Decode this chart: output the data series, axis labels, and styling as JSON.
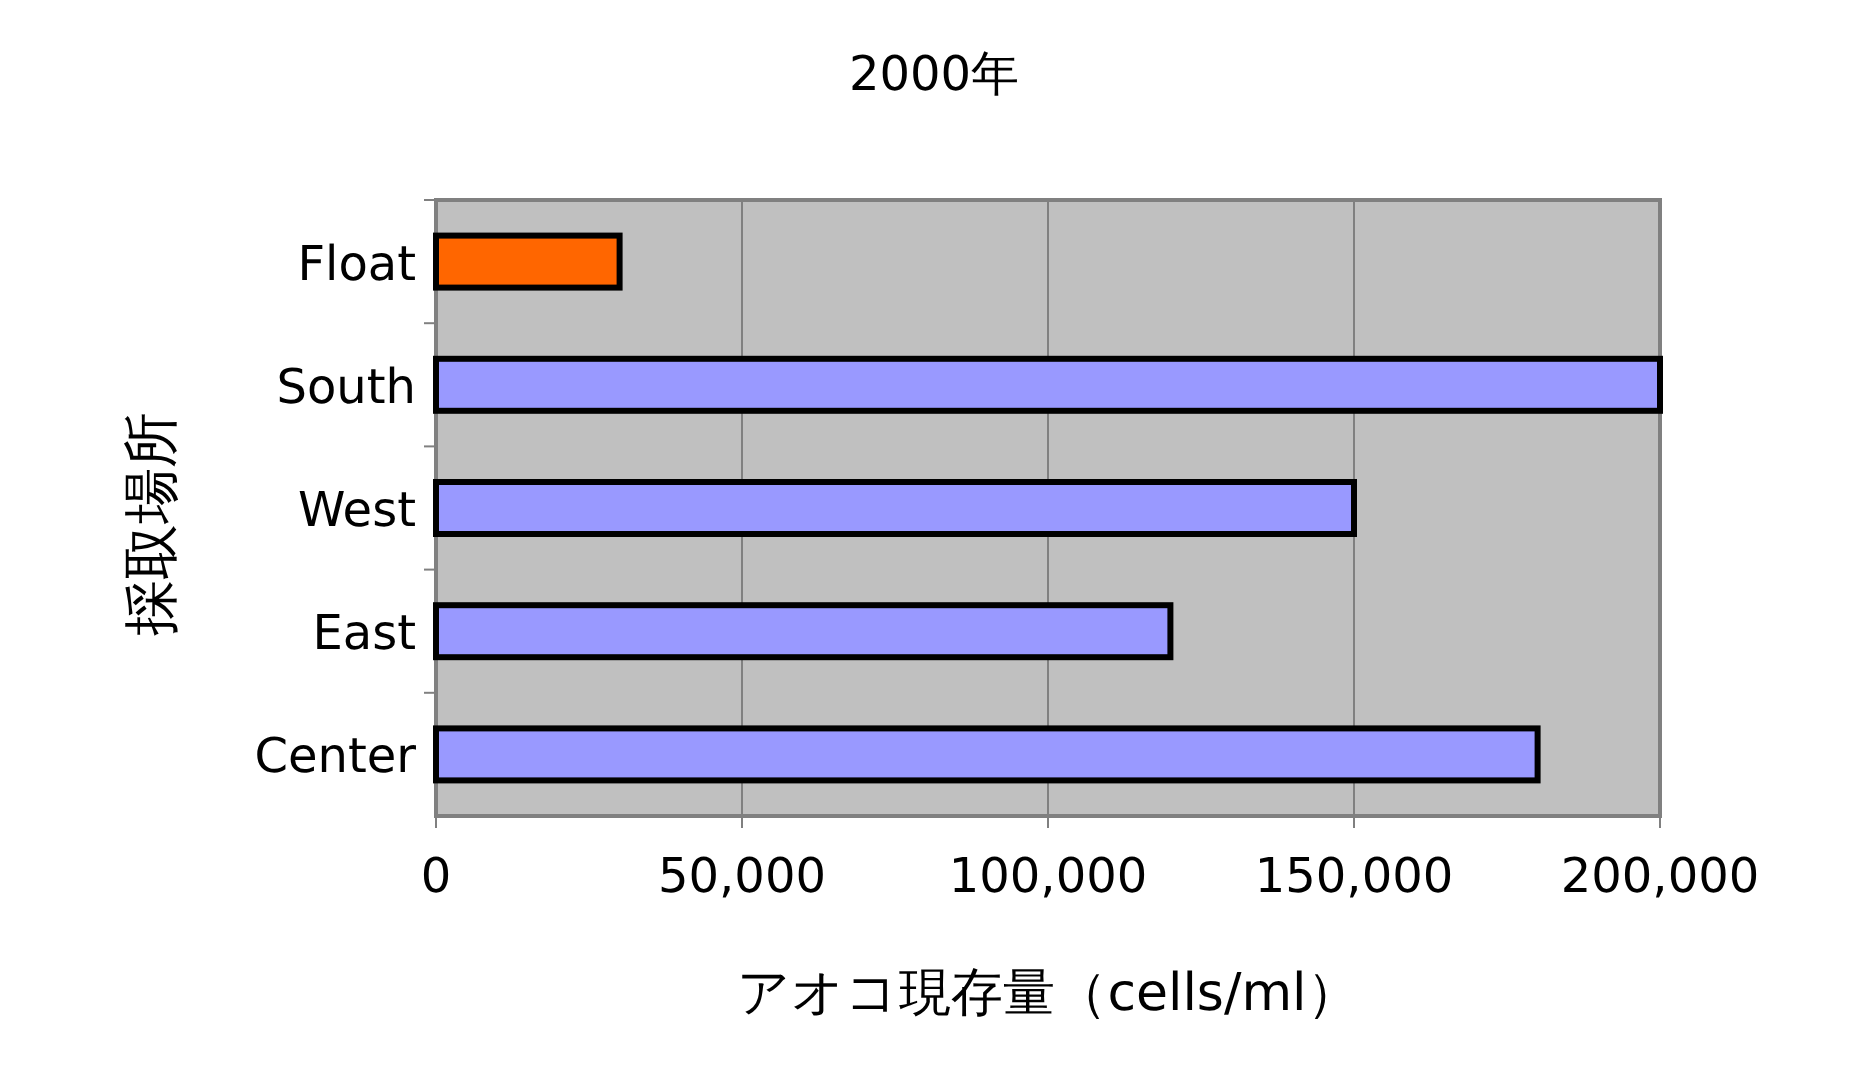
{
  "chart_data": {
    "type": "bar",
    "orientation": "horizontal",
    "title": "2000年",
    "xlabel": "アオコ現存量（cells/ml）",
    "ylabel": "採取場所",
    "categories": [
      "Float",
      "South",
      "West",
      "East",
      "Center"
    ],
    "values": [
      30000,
      200000,
      150000,
      120000,
      180000
    ],
    "colors": [
      "#ff6600",
      "#9999ff",
      "#9999ff",
      "#9999ff",
      "#9999ff"
    ],
    "xlim": [
      0,
      200000
    ],
    "xticks": [
      0,
      {
        "value": 50000,
        "label": "50,000"
      },
      {
        "value": 100000,
        "label": "100,000"
      },
      {
        "value": 150000,
        "label": "150,000"
      },
      {
        "value": 200000,
        "label": "200,000"
      }
    ],
    "grid": "x"
  }
}
